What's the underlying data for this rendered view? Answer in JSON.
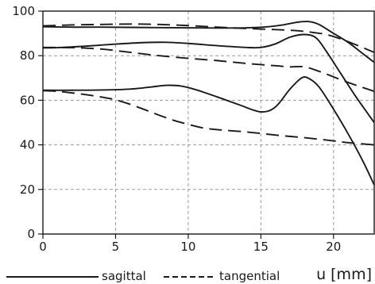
{
  "chart_data": {
    "type": "line",
    "xlabel": "u [mm]",
    "ylabel": "",
    "xlim": [
      0,
      22.8
    ],
    "ylim": [
      0,
      100
    ],
    "x_ticks": [
      0,
      5,
      10,
      15,
      20
    ],
    "y_ticks": [
      0,
      20,
      40,
      60,
      80,
      100
    ],
    "grid": true,
    "legend_position": "bottom",
    "legend": [
      {
        "label": "sagittal",
        "style": "solid"
      },
      {
        "label": "tangential",
        "style": "dashed"
      }
    ],
    "series": [
      {
        "style": "solid",
        "x": [
          0,
          2,
          4,
          6,
          8,
          10,
          12,
          14,
          15.5,
          16.5,
          17.5,
          18.3,
          19,
          20,
          21,
          22,
          22.8
        ],
        "y": [
          93,
          92.8,
          92.8,
          92.7,
          92.6,
          92.5,
          92.4,
          92.5,
          93,
          93.8,
          95,
          95.3,
          94,
          90,
          86,
          81,
          77
        ]
      },
      {
        "style": "solid",
        "x": [
          0,
          1,
          3,
          5,
          7,
          8.5,
          10,
          12,
          14,
          15,
          16,
          17,
          18,
          18.8,
          19.5,
          20.5,
          21.5,
          22.8
        ],
        "y": [
          83.5,
          83.6,
          84.3,
          85.2,
          85.9,
          86,
          85.5,
          84.5,
          83.7,
          83.7,
          85.3,
          88.3,
          89.5,
          88,
          82,
          72,
          62,
          50
        ]
      },
      {
        "style": "solid",
        "x": [
          0,
          2,
          4,
          6,
          7.5,
          8.5,
          9.5,
          10.5,
          12,
          13.5,
          15,
          16,
          17,
          17.8,
          18.3,
          19,
          20,
          21,
          22,
          22.8
        ],
        "y": [
          64.5,
          64.5,
          64.6,
          65,
          66,
          66.7,
          66.4,
          64.8,
          61.5,
          58,
          54.8,
          57,
          65,
          70,
          69.8,
          66,
          56,
          45,
          33,
          22
        ]
      },
      {
        "style": "dashed",
        "x": [
          0,
          2,
          4,
          6,
          8,
          10,
          12,
          14,
          16,
          17.5,
          18.5,
          19.5,
          20.5,
          21.5,
          22.8
        ],
        "y": [
          93.4,
          93.8,
          94,
          94.2,
          94,
          93.5,
          92.8,
          92.2,
          91.7,
          91.2,
          90.5,
          89.5,
          87.5,
          85,
          81.5
        ]
      },
      {
        "style": "dashed",
        "x": [
          0,
          2,
          4,
          6,
          8,
          10,
          12,
          14,
          16,
          17,
          18,
          19,
          20,
          21,
          22.8
        ],
        "y": [
          83.7,
          83.6,
          83,
          81.5,
          80,
          78.8,
          77.8,
          76.5,
          75.5,
          75,
          75,
          73,
          70.5,
          68,
          64
        ]
      },
      {
        "style": "dashed",
        "x": [
          0,
          1,
          2,
          3,
          4,
          5,
          6,
          7,
          8,
          9,
          10,
          11,
          12,
          14,
          16,
          18,
          20,
          21,
          22.8
        ],
        "y": [
          64.3,
          64,
          63.3,
          62.5,
          61.5,
          60.2,
          58.2,
          55.8,
          53.3,
          51,
          49.2,
          47.6,
          46.8,
          45.8,
          44.4,
          43.2,
          41.8,
          41,
          40
        ]
      }
    ]
  }
}
